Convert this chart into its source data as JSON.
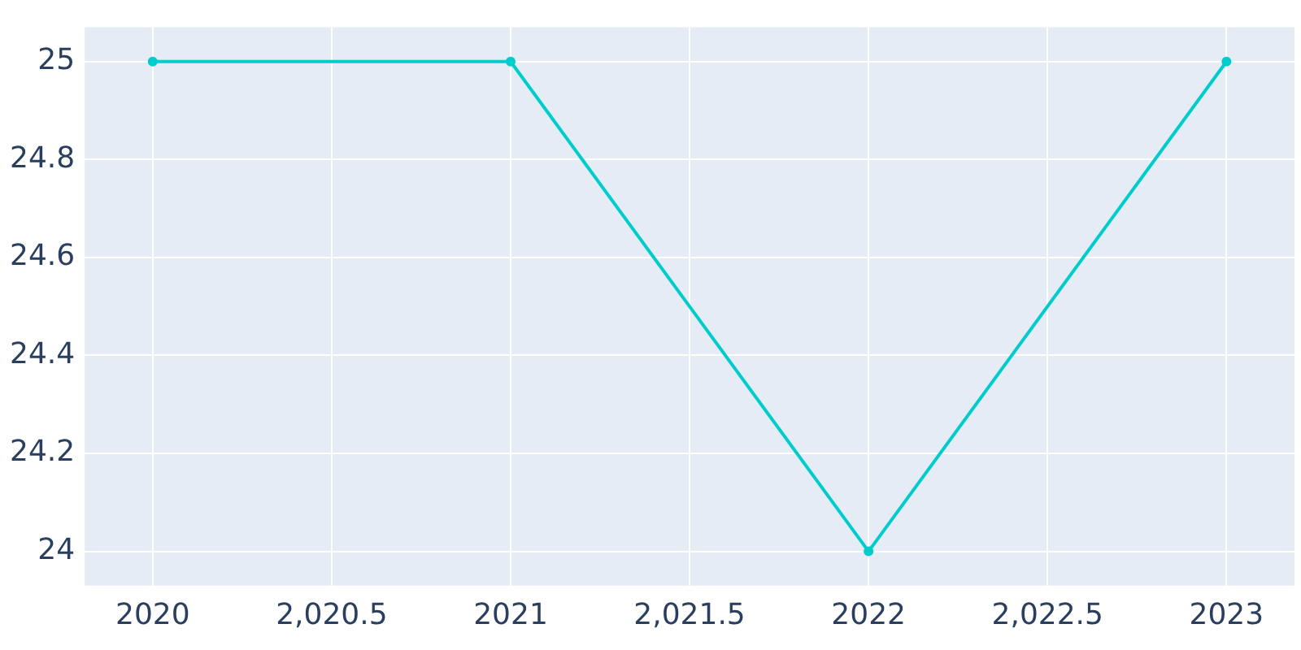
{
  "chart_data": {
    "type": "line",
    "x": [
      2020,
      2021,
      2022,
      2023
    ],
    "series": [
      {
        "color": "#00cccc",
        "values": [
          25,
          25,
          24,
          25
        ]
      }
    ],
    "xlim": [
      2019.81,
      2023.19
    ],
    "xticks": [
      2020,
      {
        "value": 2020.5,
        "label": "2,020.5"
      },
      2021,
      {
        "value": 2021.5,
        "label": "2,021.5"
      },
      2022,
      {
        "value": 2022.5,
        "label": "2,022.5"
      },
      2023
    ],
    "ylim": [
      23.93,
      25.07
    ],
    "yticks": [
      24,
      24.2,
      24.4,
      24.6,
      24.8,
      25
    ],
    "grid": true,
    "legend": false,
    "marker": "circle",
    "line_style": "solid"
  }
}
